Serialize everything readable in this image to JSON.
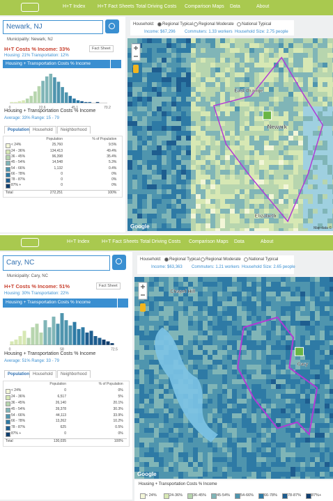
{
  "panels": [
    {
      "nav": [
        "H+T Index",
        "H+T Fact Sheets",
        "Total Driving Costs",
        "Comparison Maps",
        "Data",
        "About"
      ],
      "search": "Newark, NJ",
      "municipality": "Municipality: Newark, NJ",
      "headline": "H+T Costs % Income: 33%",
      "fact_sheet": "Fact Sheet",
      "breakdown": "Housing: 21% Transportation: 12%",
      "dropdown": "Housing + Transportation Costs % Income",
      "histogram": {
        "counts": [
          1,
          1,
          2,
          3,
          5,
          8,
          13,
          19,
          25,
          30,
          33,
          29,
          24,
          18,
          12,
          8,
          5,
          3,
          2,
          1,
          1,
          0,
          1,
          0,
          0
        ],
        "axis_labels": [
          "0",
          "22.6",
          "45.1",
          "70.2"
        ]
      },
      "metric_title": "Housing + Transportation Costs % Income",
      "stats": "Average: 33%   Range: 15 - 79",
      "tabs": [
        "Population",
        "Household",
        "Neighborhood"
      ],
      "table": {
        "columns": [
          "Population",
          "% of Population"
        ],
        "rows": [
          [
            "< 24%",
            "25,760",
            "9.5%"
          ],
          [
            "24 - 36%",
            "134,413",
            "49.4%"
          ],
          [
            "36 - 45%",
            "96,398",
            "35.4%"
          ],
          [
            "45 - 54%",
            "14,548",
            "5.3%"
          ],
          [
            "54 - 66%",
            "1,132",
            "0.4%"
          ],
          [
            "66 - 78%",
            "0",
            "0%"
          ],
          [
            "78 - 87%",
            "0",
            "0%"
          ],
          [
            "87% +",
            "0",
            "0%"
          ]
        ],
        "total": [
          "Total",
          "272,251",
          "100%"
        ]
      },
      "household_label": "Household:",
      "household_options": [
        "Regional Typical",
        "Regional Moderate",
        "National Typical"
      ],
      "income": "Income: $67,296",
      "commuters": "Commuters: 1.33 workers",
      "household_size": "Household Size: 2.75 people",
      "map_labels": [
        "East Orange",
        "Newark",
        "Elizabeth"
      ],
      "attribution": "Google",
      "map_data": "Map data ©"
    },
    {
      "nav": [
        "H+T Index",
        "H+T Fact Sheets",
        "Total Driving Costs",
        "Comparison Maps",
        "Data",
        "About"
      ],
      "search": "Cary, NC",
      "municipality": "Municipality: Cary, NC",
      "headline": "H+T Costs % Income: 51%",
      "fact_sheet": "Fact Sheet",
      "breakdown": "Housing: 30% Transportation: 22%",
      "dropdown": "Housing + Transportation Costs % Income",
      "histogram": {
        "counts": [
          2,
          3,
          5,
          8,
          4,
          10,
          12,
          7,
          14,
          10,
          16,
          12,
          18,
          14,
          11,
          13,
          9,
          10,
          7,
          8,
          5,
          4,
          3,
          2,
          1
        ],
        "axis_labels": [
          "0",
          "58",
          "72.5"
        ]
      },
      "metric_title": "Housing + Transportation Costs % Income",
      "stats": "Average: 51%   Range: 33 - 79",
      "tabs": [
        "Population",
        "Household",
        "Neighborhood"
      ],
      "table": {
        "columns": [
          "Population",
          "% of Population"
        ],
        "rows": [
          [
            "< 24%",
            "0",
            "0%"
          ],
          [
            "24 - 36%",
            "6,517",
            "5%"
          ],
          [
            "36 - 45%",
            "26,140",
            "20.1%"
          ],
          [
            "45 - 54%",
            "39,378",
            "30.3%"
          ],
          [
            "54 - 66%",
            "44,113",
            "33.9%"
          ],
          [
            "66 - 78%",
            "13,262",
            "10.2%"
          ],
          [
            "78 - 87%",
            "625",
            "0.5%"
          ],
          [
            "87% +",
            "0",
            "0%"
          ]
        ],
        "total": [
          "Total",
          "130,035",
          "100%"
        ]
      },
      "household_label": "Household:",
      "household_options": [
        "Regional Typical",
        "Regional Moderate",
        "National Typical"
      ],
      "income": "Income: $63,363",
      "commuters": "Commuters: 1.21 workers",
      "household_size": "Household Size: 2.65 people",
      "map_labels": [
        "Chapel Hill",
        "Cary"
      ],
      "attribution": "Google",
      "legend": {
        "title": "Housing + Transportation Costs % Income",
        "items": [
          "< 24%",
          "24-36%",
          "36-45%",
          "45-54%",
          "54-66%",
          "66-78%",
          "78-87%",
          "87%+"
        ]
      }
    }
  ]
}
